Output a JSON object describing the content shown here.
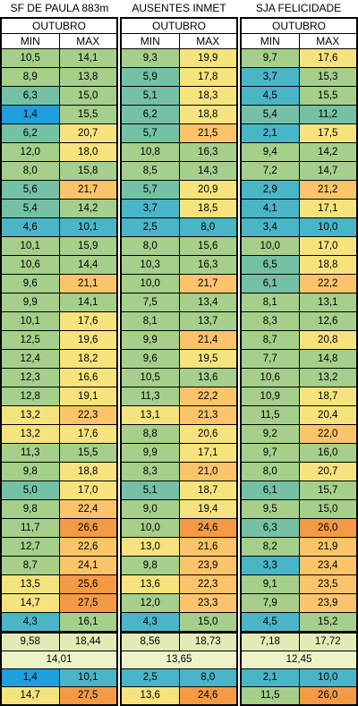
{
  "stations": [
    {
      "title": "SF DE PAULA 883m",
      "month": "OUTUBRO",
      "col_min": "MIN",
      "col_max": "MAX",
      "rows": [
        [
          "10,5",
          "14,1"
        ],
        [
          "8,9",
          "13,8"
        ],
        [
          "6,3",
          "15,0"
        ],
        [
          "1,4",
          "15,5"
        ],
        [
          "6,2",
          "20,7"
        ],
        [
          "12,0",
          "18,0"
        ],
        [
          "8,0",
          "15,8"
        ],
        [
          "5,6",
          "21,7"
        ],
        [
          "5,4",
          "14,2"
        ],
        [
          "4,6",
          "10,1"
        ],
        [
          "10,1",
          "15,9"
        ],
        [
          "10,6",
          "14,4"
        ],
        [
          "9,6",
          "21,1"
        ],
        [
          "9,9",
          "14,1"
        ],
        [
          "10,1",
          "17,6"
        ],
        [
          "12,5",
          "19,6"
        ],
        [
          "12,4",
          "18,2"
        ],
        [
          "12,3",
          "16,6"
        ],
        [
          "12,8",
          "19,1"
        ],
        [
          "13,2",
          "22,3"
        ],
        [
          "13,2",
          "17,6"
        ],
        [
          "11,3",
          "15,5"
        ],
        [
          "9,8",
          "18,8"
        ],
        [
          "5,0",
          "17,0"
        ],
        [
          "9,8",
          "22,4"
        ],
        [
          "11,7",
          "26,6"
        ],
        [
          "12,7",
          "22,6"
        ],
        [
          "8,7",
          "24,1"
        ],
        [
          "13,5",
          "25,6"
        ],
        [
          "14,7",
          "27,5"
        ],
        [
          "4,3",
          "16,1"
        ]
      ],
      "avg_min": "9,58",
      "avg_max": "18,44",
      "avg_mean": "14,01",
      "lowest_min": "1,4",
      "lowest_max": "10,1",
      "highest_min": "14,7",
      "highest_max": "27,5"
    },
    {
      "title": "AUSENTES INMET",
      "month": "OUTUBRO",
      "col_min": "MIN",
      "col_max": "MAX",
      "rows": [
        [
          "9,3",
          "19,9"
        ],
        [
          "5,9",
          "17,8"
        ],
        [
          "5,1",
          "18,3"
        ],
        [
          "6,2",
          "18,8"
        ],
        [
          "5,7",
          "21,5"
        ],
        [
          "10,8",
          "16,3"
        ],
        [
          "8,5",
          "14,3"
        ],
        [
          "5,7",
          "20,9"
        ],
        [
          "3,7",
          "18,5"
        ],
        [
          "2,5",
          "8,0"
        ],
        [
          "8,0",
          "15,6"
        ],
        [
          "10,3",
          "16,3"
        ],
        [
          "10,0",
          "21,7"
        ],
        [
          "7,5",
          "13,4"
        ],
        [
          "8,1",
          "13,7"
        ],
        [
          "9,9",
          "21,4"
        ],
        [
          "9,6",
          "19,5"
        ],
        [
          "10,5",
          "13,6"
        ],
        [
          "11,3",
          "22,2"
        ],
        [
          "13,1",
          "21,3"
        ],
        [
          "8,8",
          "20,6"
        ],
        [
          "9,9",
          "17,1"
        ],
        [
          "8,3",
          "21,0"
        ],
        [
          "5,1",
          "18,7"
        ],
        [
          "9,0",
          "19,4"
        ],
        [
          "10,0",
          "24,6"
        ],
        [
          "13,0",
          "21,6"
        ],
        [
          "9,8",
          "23,9"
        ],
        [
          "13,6",
          "22,3"
        ],
        [
          "12,0",
          "23,3"
        ],
        [
          "4,3",
          "15,0"
        ]
      ],
      "avg_min": "8,56",
      "avg_max": "18,73",
      "avg_mean": "13,65",
      "lowest_min": "2,5",
      "lowest_max": "8,0",
      "highest_min": "13,6",
      "highest_max": "24,6"
    },
    {
      "title": "SJA FELICIDADE",
      "month": "OUTUBRO",
      "col_min": "MIN",
      "col_max": "MAX",
      "rows": [
        [
          "9,7",
          "17,6"
        ],
        [
          "3,7",
          "15,3"
        ],
        [
          "4,5",
          "15,5"
        ],
        [
          "5,4",
          "11,2"
        ],
        [
          "2,1",
          "17,5"
        ],
        [
          "9,4",
          "14,2"
        ],
        [
          "7,2",
          "14,7"
        ],
        [
          "2,9",
          "21,2"
        ],
        [
          "4,1",
          "17,1"
        ],
        [
          "3,4",
          "10,0"
        ],
        [
          "10,0",
          "17,0"
        ],
        [
          "6,5",
          "18,8"
        ],
        [
          "6,1",
          "22,2"
        ],
        [
          "8,1",
          "13,1"
        ],
        [
          "8,3",
          "12,6"
        ],
        [
          "8,7",
          "20,8"
        ],
        [
          "7,7",
          "14,8"
        ],
        [
          "10,6",
          "13,2"
        ],
        [
          "10,9",
          "18,7"
        ],
        [
          "11,5",
          "20,4"
        ],
        [
          "9,2",
          "22,0"
        ],
        [
          "9,7",
          "16,0"
        ],
        [
          "8,0",
          "20,7"
        ],
        [
          "6,1",
          "15,7"
        ],
        [
          "9,5",
          "15,0"
        ],
        [
          "6,3",
          "26,0"
        ],
        [
          "8,2",
          "21,9"
        ],
        [
          "3,3",
          "23,4"
        ],
        [
          "9,1",
          "23,5"
        ],
        [
          "7,9",
          "23,9"
        ],
        [
          "4,5",
          "15,2"
        ]
      ],
      "avg_min": "7,18",
      "avg_max": "17,72",
      "avg_mean": "12,45",
      "lowest_min": "2,1",
      "lowest_max": "10,0",
      "highest_min": "11,5",
      "highest_max": "26,0"
    }
  ],
  "colors": {
    "cold": "#1e9fde",
    "cool": "#4bb5c8",
    "cool_green": "#74c1a5",
    "mild": "#a5cf8a",
    "warm_yellow": "#f7e37e",
    "warm": "#fbc46b",
    "hot": "#f49a45",
    "summary_bg": "#e3eab6",
    "mean_bg": "#eef2c9"
  }
}
